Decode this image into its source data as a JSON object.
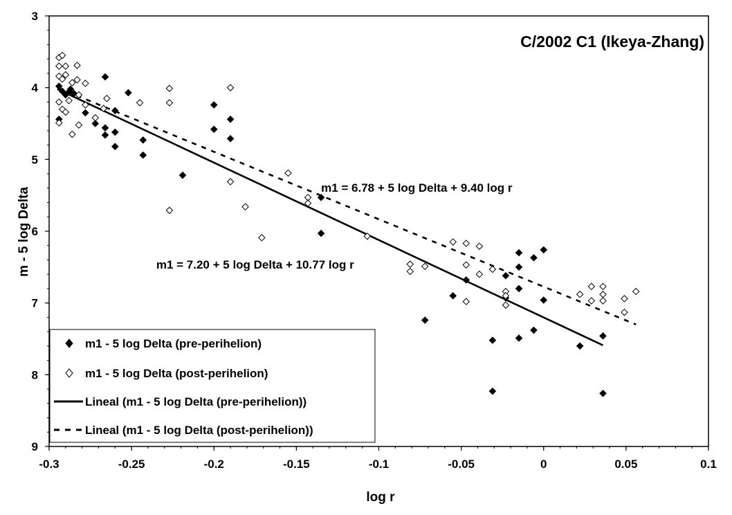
{
  "chart_data": {
    "type": "scatter",
    "title": "C/2002 C1 (Ikeya-Zhang)",
    "xlabel": "log r",
    "ylabel": "m - 5 log Delta",
    "xlim": [
      -0.3,
      0.1
    ],
    "ylim": [
      3,
      9
    ],
    "y_axis_inverted": true,
    "grid": false,
    "legend_position": "bottom-left",
    "x_ticks": [
      "-0.3",
      "-0.25",
      "-0.2",
      "-0.15",
      "-0.1",
      "-0.05",
      "0",
      "0.05",
      "0.1"
    ],
    "y_ticks": [
      "3",
      "4",
      "5",
      "6",
      "7",
      "8",
      "9"
    ],
    "annotations": [
      {
        "text": "m1 = 6.78 + 5 log Delta + 9.40 log r",
        "x": -0.135,
        "y": 5.45
      },
      {
        "text": "m1 = 7.20 + 5 log Delta + 10.77 log r",
        "x": -0.235,
        "y": 6.52
      }
    ],
    "series": [
      {
        "name": "m1 - 5 log Delta (pre-perihelion)",
        "marker": "filled-diamond",
        "points": [
          [
            -0.294,
            3.98
          ],
          [
            -0.294,
            4.44
          ],
          [
            -0.292,
            4.05
          ],
          [
            -0.29,
            4.1
          ],
          [
            -0.288,
            4.06
          ],
          [
            -0.287,
            4.02
          ],
          [
            -0.285,
            4.08
          ],
          [
            -0.278,
            4.35
          ],
          [
            -0.272,
            4.5
          ],
          [
            -0.266,
            3.85
          ],
          [
            -0.266,
            4.56
          ],
          [
            -0.266,
            4.66
          ],
          [
            -0.26,
            4.32
          ],
          [
            -0.26,
            4.62
          ],
          [
            -0.26,
            4.82
          ],
          [
            -0.252,
            4.07
          ],
          [
            -0.243,
            4.73
          ],
          [
            -0.243,
            4.94
          ],
          [
            -0.219,
            5.22
          ],
          [
            -0.2,
            4.24
          ],
          [
            -0.2,
            4.58
          ],
          [
            -0.19,
            4.44
          ],
          [
            -0.19,
            4.71
          ],
          [
            -0.135,
            5.53
          ],
          [
            -0.135,
            6.03
          ],
          [
            -0.072,
            7.24
          ],
          [
            -0.055,
            6.9
          ],
          [
            -0.047,
            6.68
          ],
          [
            -0.031,
            7.52
          ],
          [
            -0.031,
            8.23
          ],
          [
            -0.023,
            6.62
          ],
          [
            -0.023,
            6.93
          ],
          [
            -0.015,
            6.3
          ],
          [
            -0.015,
            6.5
          ],
          [
            -0.015,
            6.8
          ],
          [
            -0.015,
            7.49
          ],
          [
            -0.006,
            6.37
          ],
          [
            -0.006,
            7.38
          ],
          [
            0.0,
            6.26
          ],
          [
            0.0,
            6.96
          ],
          [
            0.022,
            7.6
          ],
          [
            0.036,
            7.46
          ],
          [
            0.036,
            8.26
          ]
        ],
        "trend": {
          "name": "Lineal (m1 - 5 log Delta (pre-perihelion))",
          "style": "solid",
          "from": [
            -0.295,
            4.02
          ],
          "to": [
            0.036,
            7.59
          ]
        }
      },
      {
        "name": "m1 - 5 log Delta (post-perihelion)",
        "marker": "open-diamond",
        "points": [
          [
            -0.294,
            3.58
          ],
          [
            -0.292,
            3.55
          ],
          [
            -0.294,
            3.7
          ],
          [
            -0.294,
            3.84
          ],
          [
            -0.292,
            3.88
          ],
          [
            -0.29,
            3.82
          ],
          [
            -0.294,
            4.2
          ],
          [
            -0.292,
            4.3
          ],
          [
            -0.294,
            4.49
          ],
          [
            -0.29,
            4.34
          ],
          [
            -0.29,
            3.7
          ],
          [
            -0.288,
            4.18
          ],
          [
            -0.286,
            3.93
          ],
          [
            -0.286,
            4.65
          ],
          [
            -0.283,
            3.89
          ],
          [
            -0.282,
            4.1
          ],
          [
            -0.282,
            4.52
          ],
          [
            -0.283,
            3.69
          ],
          [
            -0.278,
            3.94
          ],
          [
            -0.278,
            4.24
          ],
          [
            -0.272,
            4.42
          ],
          [
            -0.267,
            4.29
          ],
          [
            -0.265,
            4.15
          ],
          [
            -0.245,
            4.21
          ],
          [
            -0.227,
            4.01
          ],
          [
            -0.227,
            4.21
          ],
          [
            -0.227,
            5.71
          ],
          [
            -0.19,
            4.0
          ],
          [
            -0.19,
            5.31
          ],
          [
            -0.181,
            5.66
          ],
          [
            -0.171,
            6.09
          ],
          [
            -0.155,
            5.19
          ],
          [
            -0.143,
            5.53
          ],
          [
            -0.143,
            5.61
          ],
          [
            -0.107,
            6.07
          ],
          [
            -0.081,
            6.46
          ],
          [
            -0.081,
            6.56
          ],
          [
            -0.072,
            6.49
          ],
          [
            -0.055,
            6.15
          ],
          [
            -0.047,
            6.17
          ],
          [
            -0.047,
            6.47
          ],
          [
            -0.047,
            6.98
          ],
          [
            -0.039,
            6.21
          ],
          [
            -0.039,
            6.6
          ],
          [
            -0.031,
            6.53
          ],
          [
            -0.023,
            6.84
          ],
          [
            -0.023,
            6.9
          ],
          [
            -0.023,
            7.03
          ],
          [
            0.022,
            6.88
          ],
          [
            0.029,
            6.77
          ],
          [
            0.029,
            6.97
          ],
          [
            0.036,
            6.77
          ],
          [
            0.036,
            6.88
          ],
          [
            0.036,
            6.97
          ],
          [
            0.049,
            6.94
          ],
          [
            0.049,
            7.13
          ],
          [
            0.056,
            6.84
          ]
        ],
        "trend": {
          "name": "Lineal (m1 - 5 log Delta (post-perihelion))",
          "style": "dashed",
          "from": [
            -0.295,
            4.0
          ],
          "to": [
            0.056,
            7.3
          ]
        }
      }
    ]
  }
}
